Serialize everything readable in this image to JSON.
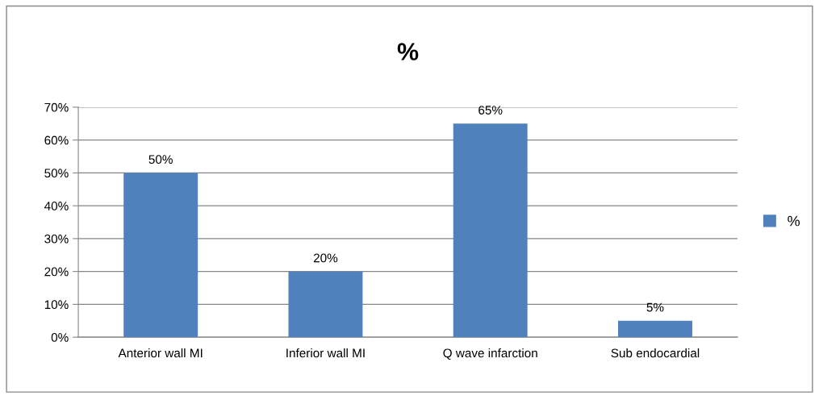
{
  "chart_data": {
    "type": "bar",
    "title": "%",
    "categories": [
      "Anterior wall MI",
      "Inferior wall MI",
      "Q wave infarction",
      "Sub endocardial"
    ],
    "series": [
      {
        "name": "%",
        "color": "#4f81bd",
        "values": [
          50,
          20,
          65,
          5
        ],
        "value_labels": [
          "50%",
          "20%",
          "65%",
          "5%"
        ]
      }
    ],
    "ylim": [
      0,
      70
    ],
    "yticks": [
      {
        "value": 0,
        "label": "0%"
      },
      {
        "value": 10,
        "label": "10%"
      },
      {
        "value": 20,
        "label": "20%"
      },
      {
        "value": 30,
        "label": "30%"
      },
      {
        "value": 40,
        "label": "40%"
      },
      {
        "value": 50,
        "label": "50%"
      },
      {
        "value": 60,
        "label": "60%"
      },
      {
        "value": 70,
        "label": "70%"
      }
    ],
    "grid": "y",
    "legend": "right"
  }
}
